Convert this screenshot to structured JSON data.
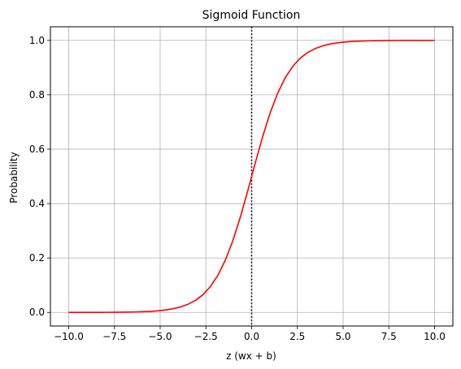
{
  "chart_data": {
    "type": "line",
    "title": "Sigmoid Function",
    "xlabel": "z (wx + b)",
    "ylabel": "Probability",
    "xlim": [
      -11,
      11
    ],
    "ylim": [
      -0.05,
      1.05
    ],
    "xticks": [
      -10.0,
      -7.5,
      -5.0,
      -2.5,
      0.0,
      2.5,
      5.0,
      7.5,
      10.0
    ],
    "xtick_labels": [
      "−10.0",
      "−7.5",
      "−5.0",
      "−2.5",
      "0.0",
      "2.5",
      "5.0",
      "7.5",
      "10.0"
    ],
    "yticks": [
      0.0,
      0.2,
      0.4,
      0.6,
      0.8,
      1.0
    ],
    "ytick_labels": [
      "0.0",
      "0.2",
      "0.4",
      "0.6",
      "0.8",
      "1.0"
    ],
    "grid": true,
    "vline": {
      "x": 0,
      "style": "dotted",
      "color": "#000000"
    },
    "series": [
      {
        "color": "#ff0000",
        "x": [
          -10.0,
          -9.5918,
          -9.1837,
          -8.7755,
          -8.3673,
          -7.9592,
          -7.551,
          -7.1429,
          -6.7347,
          -6.3265,
          -5.9184,
          -5.5102,
          -5.102,
          -4.6939,
          -4.2857,
          -3.8776,
          -3.4694,
          -3.0612,
          -2.6531,
          -2.2449,
          -1.8367,
          -1.4286,
          -1.0204,
          -0.6122,
          -0.2041,
          0.2041,
          0.6122,
          1.0204,
          1.4286,
          1.8367,
          2.2449,
          2.6531,
          3.0612,
          3.4694,
          3.8776,
          4.2857,
          4.6939,
          5.102,
          5.5102,
          5.9184,
          6.3265,
          6.7347,
          7.1429,
          7.551,
          7.9592,
          8.3673,
          8.7755,
          9.1837,
          9.5918,
          10.0
        ],
        "y": [
          0.0,
          0.0001,
          0.0001,
          0.0002,
          0.0002,
          0.0003,
          0.0005,
          0.0008,
          0.0012,
          0.0018,
          0.0027,
          0.004,
          0.006,
          0.0091,
          0.0136,
          0.0203,
          0.0302,
          0.0447,
          0.0657,
          0.0957,
          0.1374,
          0.1933,
          0.2649,
          0.3516,
          0.4491,
          0.5509,
          0.6484,
          0.7351,
          0.8067,
          0.8626,
          0.9043,
          0.9343,
          0.9553,
          0.9698,
          0.9797,
          0.9864,
          0.9909,
          0.994,
          0.996,
          0.9973,
          0.9982,
          0.9988,
          0.9992,
          0.9995,
          0.9997,
          0.9998,
          0.9998,
          0.9999,
          0.9999,
          1.0
        ]
      }
    ]
  }
}
